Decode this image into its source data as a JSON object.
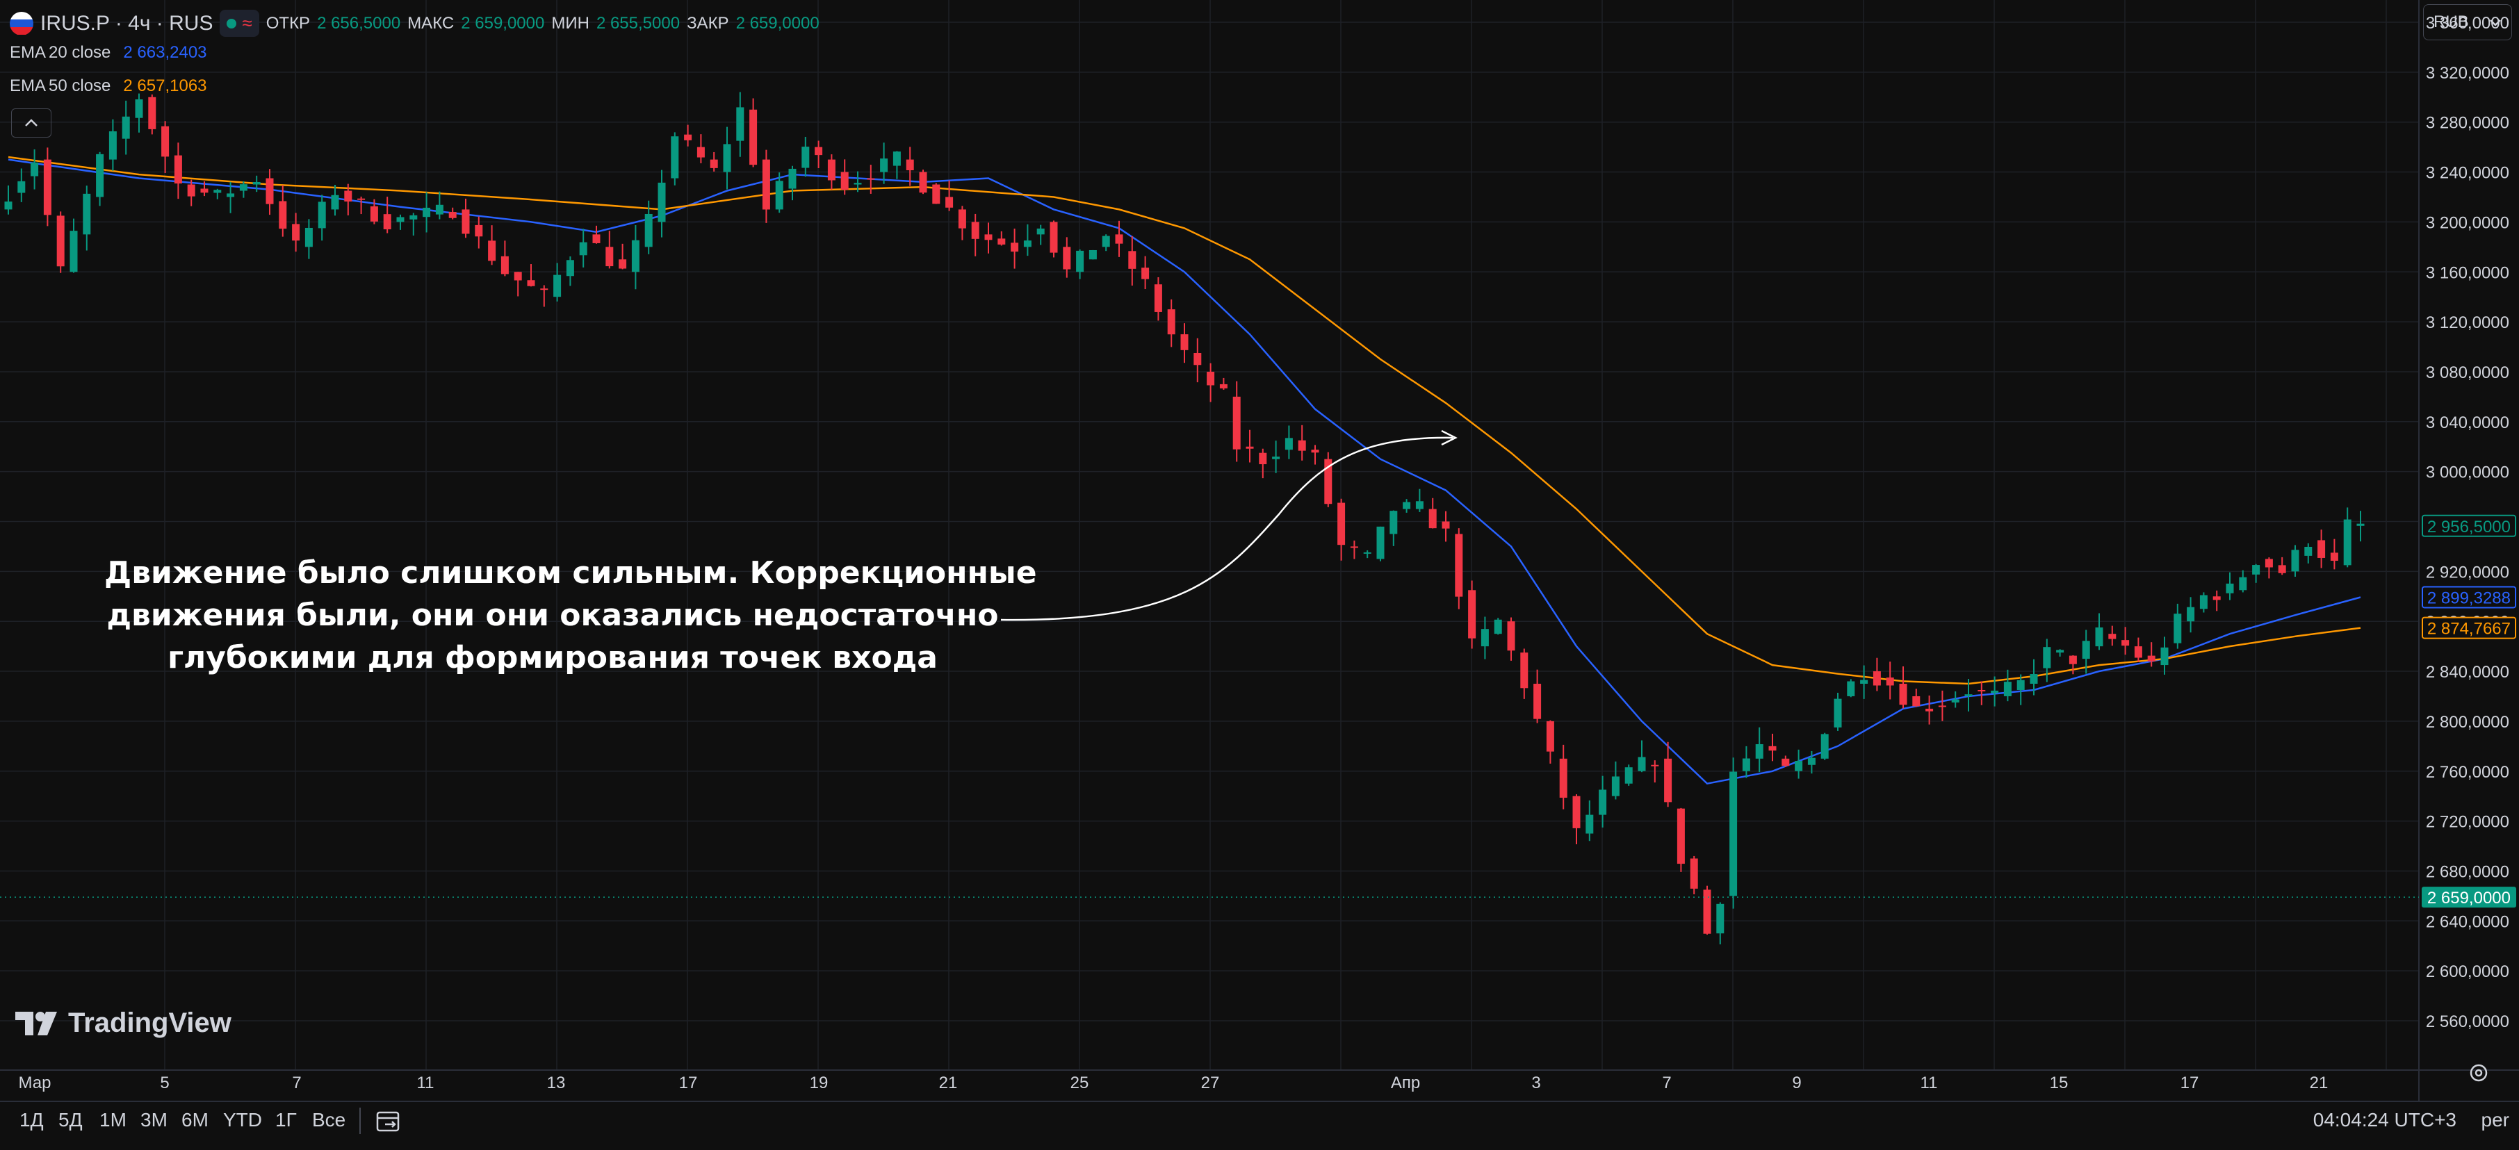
{
  "header": {
    "symbol": "IRUS.P · 4ч · RUS",
    "open_label": "ОТКР",
    "open_value": "2 656,5000",
    "high_label": "МАКС",
    "high_value": "2 659,0000",
    "low_label": "МИН",
    "low_value": "2 655,5000",
    "close_label": "ЗАКР",
    "close_value": "2 659,0000",
    "approx_icon": "≈"
  },
  "indicators": [
    {
      "label": "EMA",
      "params": "20 close",
      "value": "2 663,2403",
      "color": "#2962ff"
    },
    {
      "label": "EMA",
      "params": "50 close",
      "value": "2 657,1063",
      "color": "#ff9800"
    }
  ],
  "currency": {
    "label": "RUB",
    "icon": "chevron-down-icon"
  },
  "colors": {
    "up": "#089981",
    "down": "#f23645",
    "background": "#0f0f0f",
    "grid": "#1e2127",
    "text": "#d1d4dc"
  },
  "annotation": {
    "lines": [
      "Движение было слишком сильным. Коррекционные",
      "движения были, они они оказались недостаточно",
      "глубокими для формирования точек входа"
    ]
  },
  "branding": {
    "text": "TradingView",
    "icon": "tradingview-logo-icon"
  },
  "bottom_bar": {
    "ranges": [
      "1Д",
      "5Д",
      "1М",
      "3М",
      "6М",
      "YTD",
      "1Г",
      "Все"
    ],
    "clock": "04:04:24 UTC+3",
    "scale": "per",
    "date_range_icon": "calendar-range-icon"
  },
  "chart_data": {
    "type": "candlestick",
    "y_axis": {
      "min": 2535000,
      "max": 3380000,
      "ticks": [
        3360000,
        3320000,
        3280000,
        3240000,
        3200000,
        3160000,
        3120000,
        3080000,
        3040000,
        3000000,
        2960000,
        2920000,
        2880000,
        2840000,
        2800000,
        2760000,
        2720000,
        2680000,
        2640000,
        2600000,
        2560000
      ],
      "tick_labels": [
        "3 360,0000",
        "3 320,0000",
        "3 280,0000",
        "3 240,0000",
        "3 200,0000",
        "3 160,0000",
        "3 120,0000",
        "3 080,0000",
        "3 040,0000",
        "3 000,0000",
        "2 960,0000",
        "2 920,0000",
        "2 880,0000",
        "2 840,0000",
        "2 800,0000",
        "2 760,0000",
        "2 720,0000",
        "2 680,0000",
        "2 640,0000",
        "2 600,0000",
        "2 560,0000"
      ]
    },
    "x_axis": {
      "labels": [
        "Мар",
        "5",
        "7",
        "11",
        "13",
        "17",
        "19",
        "21",
        "25",
        "27",
        "Апр",
        "3",
        "7",
        "9",
        "11",
        "15",
        "17",
        "21"
      ],
      "label_index": [
        0,
        20,
        40,
        60,
        80,
        100,
        120,
        140,
        160,
        180,
        200,
        220,
        240,
        260,
        280,
        300,
        320,
        340
      ],
      "bars_total": 370
    },
    "price_labels": [
      {
        "value": 2956500,
        "text": "2 956,5000",
        "color": "#089981",
        "style": "outline"
      },
      {
        "value": 2899329,
        "text": "2 899,3288",
        "color": "#2962ff",
        "style": "outline"
      },
      {
        "value": 2874767,
        "text": "2 874,7667",
        "color": "#ff9800",
        "style": "outline"
      },
      {
        "value": 2659000,
        "text": "2 659,0000",
        "color": "#089981",
        "style": "filled"
      }
    ],
    "current_price": 2659000,
    "series": [
      {
        "name": "EMA 20 close",
        "color": "#2962ff",
        "points": [
          [
            0,
            3250000
          ],
          [
            20,
            3235000
          ],
          [
            40,
            3226000
          ],
          [
            60,
            3212000
          ],
          [
            80,
            3200000
          ],
          [
            90,
            3192000
          ],
          [
            100,
            3205000
          ],
          [
            110,
            3225000
          ],
          [
            120,
            3238000
          ],
          [
            140,
            3232000
          ],
          [
            150,
            3235000
          ],
          [
            160,
            3210000
          ],
          [
            170,
            3195000
          ],
          [
            180,
            3160000
          ],
          [
            190,
            3110000
          ],
          [
            200,
            3050000
          ],
          [
            210,
            3010000
          ],
          [
            220,
            2985000
          ],
          [
            230,
            2940000
          ],
          [
            240,
            2860000
          ],
          [
            250,
            2800000
          ],
          [
            260,
            2750000
          ],
          [
            270,
            2760000
          ],
          [
            280,
            2780000
          ],
          [
            290,
            2810000
          ],
          [
            300,
            2820000
          ],
          [
            310,
            2825000
          ],
          [
            320,
            2840000
          ],
          [
            330,
            2850000
          ],
          [
            340,
            2870000
          ],
          [
            350,
            2885000
          ],
          [
            360,
            2899329
          ]
        ]
      },
      {
        "name": "EMA 50 close",
        "color": "#ff9800",
        "points": [
          [
            0,
            3252000
          ],
          [
            20,
            3238000
          ],
          [
            40,
            3230000
          ],
          [
            60,
            3225000
          ],
          [
            80,
            3218000
          ],
          [
            100,
            3210000
          ],
          [
            120,
            3225000
          ],
          [
            140,
            3228000
          ],
          [
            160,
            3220000
          ],
          [
            170,
            3210000
          ],
          [
            180,
            3195000
          ],
          [
            190,
            3170000
          ],
          [
            200,
            3130000
          ],
          [
            210,
            3090000
          ],
          [
            220,
            3055000
          ],
          [
            230,
            3015000
          ],
          [
            240,
            2970000
          ],
          [
            250,
            2920000
          ],
          [
            260,
            2870000
          ],
          [
            270,
            2845000
          ],
          [
            280,
            2838000
          ],
          [
            290,
            2832000
          ],
          [
            300,
            2830000
          ],
          [
            310,
            2836000
          ],
          [
            320,
            2845000
          ],
          [
            330,
            2850000
          ],
          [
            340,
            2860000
          ],
          [
            350,
            2868000
          ],
          [
            360,
            2874767
          ]
        ]
      }
    ],
    "candles": {
      "anchors": [
        [
          0,
          3210000
        ],
        [
          6,
          3250000
        ],
        [
          10,
          3160000
        ],
        [
          16,
          3250000
        ],
        [
          22,
          3300000
        ],
        [
          28,
          3230000
        ],
        [
          34,
          3220000
        ],
        [
          40,
          3235000
        ],
        [
          46,
          3180000
        ],
        [
          52,
          3225000
        ],
        [
          60,
          3200000
        ],
        [
          70,
          3210000
        ],
        [
          78,
          3160000
        ],
        [
          84,
          3140000
        ],
        [
          90,
          3190000
        ],
        [
          96,
          3160000
        ],
        [
          100,
          3200000
        ],
        [
          104,
          3270000
        ],
        [
          110,
          3240000
        ],
        [
          114,
          3290000
        ],
        [
          118,
          3210000
        ],
        [
          124,
          3260000
        ],
        [
          130,
          3230000
        ],
        [
          138,
          3250000
        ],
        [
          144,
          3220000
        ],
        [
          150,
          3190000
        ],
        [
          156,
          3180000
        ],
        [
          160,
          3200000
        ],
        [
          164,
          3160000
        ],
        [
          170,
          3190000
        ],
        [
          176,
          3150000
        ],
        [
          180,
          3110000
        ],
        [
          184,
          3080000
        ],
        [
          188,
          3060000
        ],
        [
          190,
          3020000
        ],
        [
          194,
          3010000
        ],
        [
          198,
          3025000
        ],
        [
          202,
          3010000
        ],
        [
          206,
          2940000
        ],
        [
          210,
          2930000
        ],
        [
          214,
          2970000
        ],
        [
          218,
          2970000
        ],
        [
          222,
          2950000
        ],
        [
          226,
          2860000
        ],
        [
          230,
          2880000
        ],
        [
          234,
          2830000
        ],
        [
          238,
          2770000
        ],
        [
          242,
          2710000
        ],
        [
          246,
          2740000
        ],
        [
          250,
          2760000
        ],
        [
          254,
          2770000
        ],
        [
          258,
          2690000
        ],
        [
          260,
          2665000
        ],
        [
          262,
          2630000
        ],
        [
          264,
          2660000
        ],
        [
          266,
          2760000
        ],
        [
          270,
          2780000
        ],
        [
          274,
          2760000
        ],
        [
          278,
          2770000
        ],
        [
          282,
          2820000
        ],
        [
          286,
          2840000
        ],
        [
          290,
          2830000
        ],
        [
          294,
          2810000
        ],
        [
          298,
          2815000
        ],
        [
          302,
          2825000
        ],
        [
          306,
          2820000
        ],
        [
          310,
          2830000
        ],
        [
          314,
          2855000
        ],
        [
          318,
          2850000
        ],
        [
          322,
          2870000
        ],
        [
          326,
          2860000
        ],
        [
          330,
          2845000
        ],
        [
          334,
          2880000
        ],
        [
          338,
          2900000
        ],
        [
          342,
          2905000
        ],
        [
          346,
          2930000
        ],
        [
          350,
          2920000
        ],
        [
          354,
          2945000
        ],
        [
          358,
          2925000
        ],
        [
          360,
          2956500
        ]
      ]
    }
  }
}
